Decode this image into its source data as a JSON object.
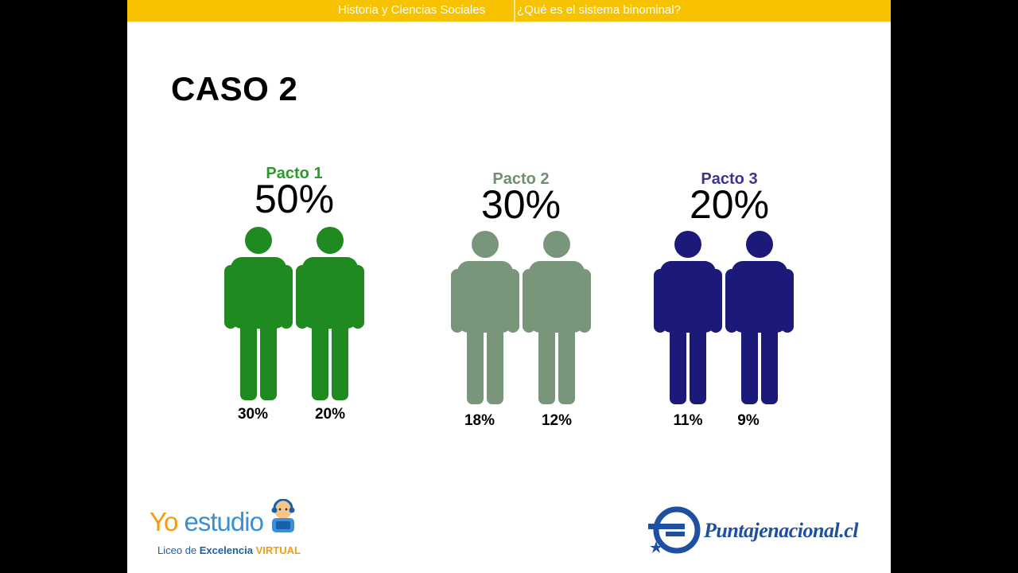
{
  "header": {
    "subject": "Historia y Ciencias Sociales",
    "topic": "¿Qué es el sistema binominal?"
  },
  "slide": {
    "title": "CASO 2",
    "pactos": [
      {
        "name": "Pacto 1",
        "total": "50%",
        "name_color": "#2e9a2e",
        "figure_color": "#1f8a1f",
        "candidates": [
          "30%",
          "20%"
        ]
      },
      {
        "name": "Pacto 2",
        "total": "30%",
        "name_color": "#6f8f6f",
        "figure_color": "#7a967a",
        "candidates": [
          "18%",
          "12%"
        ]
      },
      {
        "name": "Pacto 3",
        "total": "20%",
        "name_color": "#3b3592",
        "figure_color": "#1c1a78",
        "candidates": [
          "11%",
          "9%"
        ]
      }
    ]
  },
  "logos": {
    "yo_estudio": {
      "yo": "Yo",
      "estudio": "estudio",
      "sub_prefix": "Liceo de ",
      "sub_bold": "Excelencia",
      "sub_virtual": "VIRTUAL"
    },
    "puntaje": {
      "text": "Puntajenacional.cl"
    }
  },
  "colors": {
    "topbar": "#f7c300",
    "pn_blue": "#1f4fa0"
  }
}
